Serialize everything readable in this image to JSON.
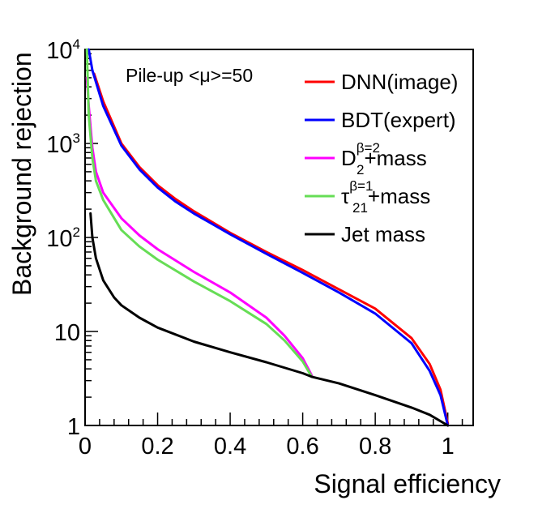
{
  "chart_data": {
    "type": "line",
    "xlabel": "Signal efficiency",
    "ylabel": "Background rejection",
    "xlim": [
      0,
      1.07
    ],
    "ylim": [
      1,
      10000
    ],
    "yscale": "log",
    "x_ticks": [
      {
        "value": 0,
        "label": "0"
      },
      {
        "value": 0.2,
        "label": "0.2"
      },
      {
        "value": 0.4,
        "label": "0.4"
      },
      {
        "value": 0.6,
        "label": "0.6"
      },
      {
        "value": 0.8,
        "label": "0.8"
      },
      {
        "value": 1,
        "label": "1"
      }
    ],
    "y_ticks": [
      {
        "value": 1,
        "base": "1",
        "exp": ""
      },
      {
        "value": 10,
        "base": "10",
        "exp": ""
      },
      {
        "value": 100,
        "base": "10",
        "exp": "2"
      },
      {
        "value": 1000,
        "base": "10",
        "exp": "3"
      },
      {
        "value": 10000,
        "base": "10",
        "exp": "4"
      }
    ],
    "annotation": "Pile-up <μ>=50",
    "legend_position": "top-right",
    "series": [
      {
        "name": "DNN(image)",
        "label_main": "DNN(image)",
        "sub": "",
        "sup": "",
        "suffix": "",
        "color": "#ff0000",
        "x": [
          0.025,
          0.05,
          0.1,
          0.15,
          0.2,
          0.25,
          0.3,
          0.4,
          0.5,
          0.6,
          0.7,
          0.8,
          0.9,
          0.95,
          0.98,
          1.0
        ],
        "y": [
          5500,
          2800,
          1000,
          560,
          360,
          255,
          190,
          112,
          70,
          45,
          28,
          17.5,
          8.5,
          4.5,
          2.4,
          1.05
        ]
      },
      {
        "name": "BDT(expert)",
        "label_main": "BDT(expert)",
        "sub": "",
        "sup": "",
        "suffix": "",
        "color": "#0000ff",
        "x": [
          0.01,
          0.02,
          0.05,
          0.1,
          0.15,
          0.2,
          0.25,
          0.3,
          0.4,
          0.5,
          0.6,
          0.7,
          0.8,
          0.9,
          0.95,
          0.98,
          1.0
        ],
        "y": [
          10000,
          6000,
          2500,
          950,
          530,
          340,
          240,
          180,
          108,
          67,
          42,
          26,
          15.5,
          7.5,
          3.8,
          2.1,
          1.0
        ]
      },
      {
        "name": "D2 beta=2 + mass",
        "label_main": "D",
        "sub": "2",
        "sup": "β=2",
        "suffix": "+mass",
        "color": "#ff00ff",
        "x": [
          0.005,
          0.01,
          0.02,
          0.03,
          0.05,
          0.1,
          0.15,
          0.2,
          0.3,
          0.4,
          0.5,
          0.55,
          0.6,
          0.625
        ],
        "y": [
          5000,
          2500,
          900,
          500,
          300,
          160,
          105,
          75,
          43,
          26,
          14,
          9,
          5.2,
          3.4
        ]
      },
      {
        "name": "tau21 beta=1 + mass",
        "label_main": "τ",
        "sub": "21",
        "sup": "β=1",
        "suffix": "+mass",
        "color": "#66dd55",
        "x": [
          0.005,
          0.01,
          0.02,
          0.03,
          0.05,
          0.1,
          0.15,
          0.2,
          0.3,
          0.4,
          0.5,
          0.55,
          0.6,
          0.625
        ],
        "y": [
          10000,
          2000,
          700,
          400,
          250,
          120,
          80,
          58,
          34,
          21,
          12,
          8,
          4.8,
          3.3
        ]
      },
      {
        "name": "Jet mass",
        "label_main": "Jet mass",
        "sub": "",
        "sup": "",
        "suffix": "",
        "color": "#000000",
        "x": [
          0.015,
          0.02,
          0.03,
          0.05,
          0.08,
          0.1,
          0.15,
          0.2,
          0.3,
          0.4,
          0.5,
          0.6,
          0.625,
          0.7,
          0.8,
          0.9,
          0.95,
          1.0
        ],
        "y": [
          180,
          100,
          60,
          35,
          23,
          19,
          14,
          11,
          7.8,
          6,
          4.7,
          3.6,
          3.3,
          2.8,
          2.1,
          1.55,
          1.3,
          1.0
        ]
      }
    ]
  }
}
